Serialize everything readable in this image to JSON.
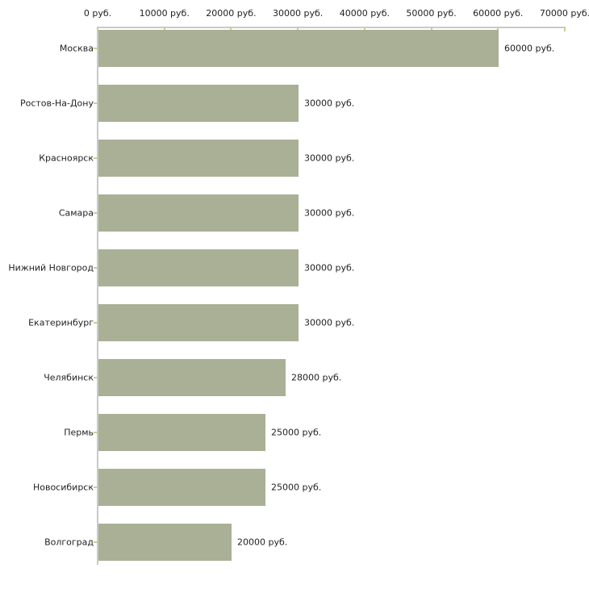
{
  "chart_data": {
    "type": "bar",
    "orientation": "horizontal",
    "title": "",
    "xlabel": "",
    "ylabel": "",
    "unit": "руб.",
    "categories": [
      "Москва",
      "Ростов-На-Дону",
      "Красноярск",
      "Самара",
      "Нижний Новгород",
      "Екатеринбург",
      "Челябинск",
      "Пермь",
      "Новосибирск",
      "Волгоград"
    ],
    "values": [
      60000,
      30000,
      30000,
      30000,
      30000,
      30000,
      28000,
      25000,
      25000,
      20000
    ],
    "value_labels": [
      "60000 руб.",
      "30000 руб.",
      "30000 руб.",
      "30000 руб.",
      "30000 руб.",
      "30000 руб.",
      "28000 руб.",
      "25000 руб.",
      "25000 руб.",
      "20000 руб."
    ],
    "x_tick_values": [
      0,
      10000,
      20000,
      30000,
      40000,
      50000,
      60000,
      70000
    ],
    "x_tick_labels": [
      "0 руб.",
      "10000 руб.",
      "20000 руб.",
      "30000 руб.",
      "40000 руб.",
      "50000 руб.",
      "60000 руб.",
      "70000 руб."
    ],
    "xlim": [
      0,
      70000
    ],
    "grid": false,
    "legend": false,
    "axis_position": "top",
    "colors": {
      "bar": "#a9b096",
      "axis_line": "#c9c9c9",
      "tick_mark": "#cccc99",
      "text": "#222222",
      "background": "#ffffff"
    }
  }
}
